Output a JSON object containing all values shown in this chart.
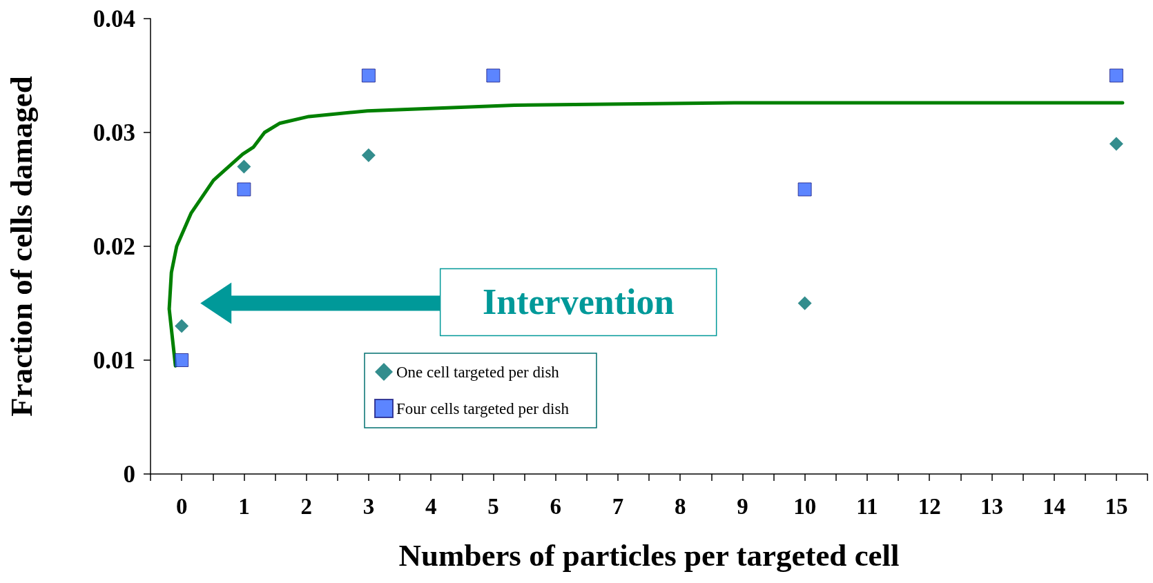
{
  "chart_data": {
    "type": "scatter",
    "xlabel": "Numbers of particles per targeted cell",
    "ylabel": "Fraction of cells damaged",
    "xlim": [
      -0.5,
      15.5
    ],
    "xticks": [
      {
        "value": -0.5,
        "label": null
      },
      0,
      {
        "value": 0.5,
        "label": null
      },
      1,
      {
        "value": 1.5,
        "label": null
      },
      2,
      {
        "value": 2.5,
        "label": null
      },
      3,
      {
        "value": 3.5,
        "label": null
      },
      4,
      {
        "value": 4.5,
        "label": null
      },
      5,
      {
        "value": 5.5,
        "label": null
      },
      6,
      {
        "value": 6.5,
        "label": null
      },
      7,
      {
        "value": 7.5,
        "label": null
      },
      8,
      {
        "value": 8.5,
        "label": null
      },
      9,
      {
        "value": 9.5,
        "label": null
      },
      10,
      {
        "value": 10.5,
        "label": null
      },
      11,
      {
        "value": 11.5,
        "label": null
      },
      12,
      {
        "value": 12.5,
        "label": null
      },
      13,
      {
        "value": 13.5,
        "label": null
      },
      14,
      {
        "value": 14.5,
        "label": null
      },
      15,
      {
        "value": 15.5,
        "label": null
      }
    ],
    "ylim": [
      0,
      0.04
    ],
    "yticks": [
      0,
      0.01,
      0.02,
      0.03,
      0.04
    ],
    "grid": false,
    "legend": "bottom",
    "annotations": [
      "Intervention"
    ],
    "series": [
      {
        "name": "One cell targeted per dish",
        "color": "#007070",
        "marker": "diamond",
        "x": [
          0,
          1,
          3,
          5,
          10,
          15
        ],
        "values": [
          0.013,
          0.027,
          0.028,
          null,
          0.015,
          0.029
        ]
      },
      {
        "name": "Four cells targeted per dish",
        "color": "#3366ff",
        "marker": "square",
        "x": [
          0,
          1,
          3,
          5,
          10,
          15
        ],
        "values": [
          0.01,
          0.025,
          0.035,
          0.035,
          0.025,
          0.035
        ]
      },
      {
        "type": "line",
        "color": "#008000",
        "marker": "none",
        "x": [
          -0.1,
          -0.2,
          -0.165,
          -0.08,
          0.15,
          0.51,
          0.98,
          1.15,
          1.33,
          1.57,
          2.04,
          2.98,
          5.34,
          8.87,
          15.1
        ],
        "values": [
          0.0095,
          0.0145,
          0.0177,
          0.02,
          0.0229,
          0.0258,
          0.0281,
          0.0287,
          0.03,
          0.0308,
          0.0314,
          0.0319,
          0.0324,
          0.0326,
          0.0326
        ]
      }
    ]
  }
}
